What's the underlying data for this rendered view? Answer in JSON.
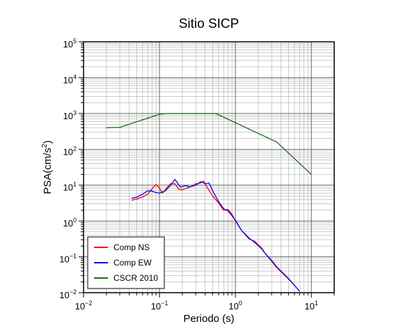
{
  "chart_data": {
    "type": "line",
    "title": "Sitio SICP",
    "xlabel": "Periodo (s)",
    "ylabel_main": "PSA(cm/s",
    "ylabel_sup": "2",
    "ylabel_tail": ")",
    "x_scale": "log",
    "y_scale": "log",
    "xlim": [
      0.01,
      20
    ],
    "ylim": [
      0.01,
      100000
    ],
    "grid": true,
    "legend_position": "bottom-left",
    "x_ticks": [
      {
        "value": 0.01,
        "base": "10",
        "exp": "−2"
      },
      {
        "value": 0.1,
        "base": "10",
        "exp": "−1"
      },
      {
        "value": 1,
        "base": "10",
        "exp": "0"
      },
      {
        "value": 10,
        "base": "10",
        "exp": "1"
      }
    ],
    "y_ticks": [
      {
        "value": 0.01,
        "base": "10",
        "exp": "−2"
      },
      {
        "value": 0.1,
        "base": "10",
        "exp": "−1"
      },
      {
        "value": 1,
        "base": "10",
        "exp": "0"
      },
      {
        "value": 10,
        "base": "10",
        "exp": "1"
      },
      {
        "value": 100,
        "base": "10",
        "exp": "2"
      },
      {
        "value": 1000,
        "base": "10",
        "exp": "3"
      },
      {
        "value": 10000,
        "base": "10",
        "exp": "4"
      },
      {
        "value": 100000,
        "base": "10",
        "exp": "5"
      }
    ],
    "series": [
      {
        "name": "Comp NS",
        "color": "#ff0000",
        "points": [
          [
            0.043,
            3.8
          ],
          [
            0.05,
            4.1
          ],
          [
            0.06,
            4.7
          ],
          [
            0.07,
            5.6
          ],
          [
            0.08,
            8.0
          ],
          [
            0.09,
            10.5
          ],
          [
            0.1,
            8.2
          ],
          [
            0.11,
            6.0
          ],
          [
            0.125,
            8.5
          ],
          [
            0.14,
            11.0
          ],
          [
            0.16,
            11.0
          ],
          [
            0.18,
            7.6
          ],
          [
            0.2,
            7.5
          ],
          [
            0.25,
            8.8
          ],
          [
            0.3,
            11.0
          ],
          [
            0.35,
            11.5
          ],
          [
            0.38,
            13.0
          ],
          [
            0.42,
            9.0
          ],
          [
            0.5,
            5.0
          ],
          [
            0.6,
            3.2
          ],
          [
            0.7,
            2.0
          ],
          [
            0.8,
            2.1
          ],
          [
            0.9,
            1.55
          ],
          [
            1.0,
            1.0
          ],
          [
            1.2,
            0.55
          ],
          [
            1.5,
            0.32
          ],
          [
            1.8,
            0.27
          ],
          [
            2.2,
            0.18
          ],
          [
            2.5,
            0.12
          ],
          [
            3.0,
            0.075
          ],
          [
            3.5,
            0.05
          ],
          [
            4.0,
            0.038
          ],
          [
            5.0,
            0.024
          ],
          [
            6.0,
            0.016
          ],
          [
            7.0,
            0.011
          ]
        ]
      },
      {
        "name": "Comp EW",
        "color": "#0000ff",
        "points": [
          [
            0.043,
            4.3
          ],
          [
            0.05,
            4.6
          ],
          [
            0.06,
            5.6
          ],
          [
            0.07,
            7.0
          ],
          [
            0.08,
            6.8
          ],
          [
            0.09,
            6.2
          ],
          [
            0.1,
            6.0
          ],
          [
            0.12,
            7.0
          ],
          [
            0.14,
            10.0
          ],
          [
            0.16,
            14.5
          ],
          [
            0.175,
            11.0
          ],
          [
            0.19,
            8.8
          ],
          [
            0.22,
            9.8
          ],
          [
            0.25,
            9.0
          ],
          [
            0.3,
            10.0
          ],
          [
            0.35,
            12.5
          ],
          [
            0.4,
            11.0
          ],
          [
            0.45,
            11.5
          ],
          [
            0.5,
            7.0
          ],
          [
            0.6,
            3.5
          ],
          [
            0.7,
            2.2
          ],
          [
            0.8,
            1.9
          ],
          [
            0.9,
            1.4
          ],
          [
            1.0,
            1.05
          ],
          [
            1.2,
            0.55
          ],
          [
            1.5,
            0.34
          ],
          [
            1.8,
            0.25
          ],
          [
            2.2,
            0.17
          ],
          [
            2.5,
            0.12
          ],
          [
            3.0,
            0.08
          ],
          [
            3.5,
            0.052
          ],
          [
            4.0,
            0.04
          ],
          [
            5.0,
            0.025
          ],
          [
            6.0,
            0.016
          ],
          [
            7.0,
            0.011
          ]
        ]
      },
      {
        "name": "CSCR 2010",
        "color": "#1a6a1a",
        "points": [
          [
            0.02,
            400
          ],
          [
            0.03,
            410
          ],
          [
            0.1,
            950
          ],
          [
            0.125,
            1000
          ],
          [
            0.55,
            1000
          ],
          [
            3.5,
            160
          ],
          [
            10,
            20
          ]
        ]
      }
    ]
  }
}
